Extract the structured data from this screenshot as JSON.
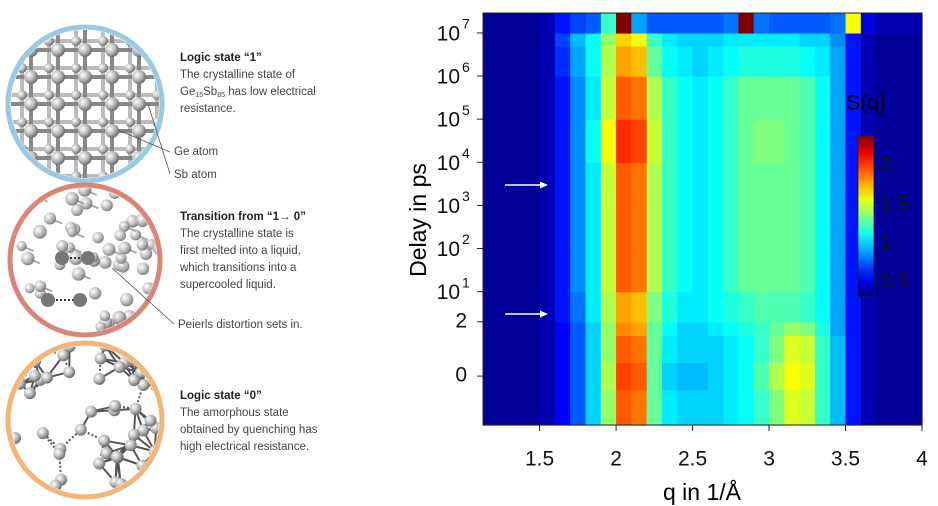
{
  "panels": [
    {
      "title": "Logic state “1”",
      "lines": [
        "The crystalline state of"
      ],
      "formula": [
        "Ge",
        "15",
        "Sb",
        "85"
      ],
      "formula_rest": " has low electrical",
      "after": [
        "resistance."
      ],
      "labels": [
        "Ge atom",
        "Sb atom"
      ]
    },
    {
      "title": "Transition from “1→ 0”",
      "lines": [
        "The crystalline state is",
        "first melted into a liquid,",
        "which transitions into a",
        "supercooled liquid."
      ],
      "labels": [
        "Peierls distortion sets in."
      ]
    },
    {
      "title": "Logic state “0”",
      "lines": [
        "The amorphous state",
        "obtained by quenching has",
        "high electrical resistance."
      ]
    }
  ],
  "chart_data": {
    "type": "heatmap",
    "xlabel": "q in 1/Å",
    "ylabel": "Delay in ps",
    "xlim": [
      1.13,
      4.0
    ],
    "xticks": [
      1.5,
      2,
      2.5,
      3,
      3.5,
      4
    ],
    "ylim": [
      -1.8,
      29000000
    ],
    "yscale": "symlog",
    "linthresh": 2,
    "yticks": [
      {
        "value": 10000000,
        "label": "10",
        "exponent": "7"
      },
      {
        "value": 1000000,
        "label": "10",
        "exponent": "6"
      },
      {
        "value": 100000,
        "label": "10",
        "exponent": "5"
      },
      {
        "value": 10000,
        "label": "10",
        "exponent": "4"
      },
      {
        "value": 1000,
        "label": "10",
        "exponent": "3"
      },
      {
        "value": 100,
        "label": "10",
        "exponent": "2"
      },
      {
        "value": 10,
        "label": "10",
        "exponent": "1"
      },
      2,
      0
    ],
    "x_edges": [
      1.13,
      1.3,
      1.4,
      1.5,
      1.6,
      1.7,
      1.8,
      1.9,
      2.0,
      2.1,
      2.2,
      2.3,
      2.4,
      2.5,
      2.6,
      2.7,
      2.8,
      2.9,
      3.0,
      3.1,
      3.2,
      3.3,
      3.4,
      3.5,
      3.6,
      3.7,
      3.8,
      3.9,
      4.0
    ],
    "y_edges": [
      -1.8,
      -0.5,
      0.5,
      1.5,
      2,
      10,
      100,
      1000,
      10000,
      100000,
      1000000,
      5000000,
      10000000,
      29000000
    ],
    "z": [
      [
        0.35,
        0.35,
        0.35,
        0.4,
        0.55,
        0.75,
        1.0,
        1.4,
        1.95,
        1.9,
        1.3,
        1.05,
        1.0,
        1.0,
        1.0,
        1.05,
        1.1,
        1.2,
        1.35,
        1.55,
        1.5,
        1.2,
        0.95,
        0.6,
        0.4,
        0.35,
        0.35,
        0.35
      ],
      [
        0.35,
        0.35,
        0.35,
        0.4,
        0.55,
        0.75,
        1.0,
        1.45,
        2.0,
        1.95,
        1.3,
        1.0,
        0.95,
        0.95,
        1.0,
        1.05,
        1.1,
        1.25,
        1.45,
        1.6,
        1.55,
        1.2,
        0.95,
        0.6,
        0.4,
        0.35,
        0.35,
        0.35
      ],
      [
        0.35,
        0.35,
        0.35,
        0.4,
        0.55,
        0.75,
        1.0,
        1.4,
        1.95,
        1.9,
        1.3,
        1.05,
        1.0,
        1.0,
        1.0,
        1.05,
        1.1,
        1.2,
        1.35,
        1.55,
        1.5,
        1.2,
        0.95,
        0.6,
        0.4,
        0.35,
        0.35,
        0.35
      ],
      [
        0.35,
        0.35,
        0.35,
        0.4,
        0.55,
        0.75,
        1.0,
        1.4,
        1.85,
        1.8,
        1.3,
        1.1,
        1.0,
        1.0,
        1.05,
        1.1,
        1.15,
        1.2,
        1.3,
        1.4,
        1.35,
        1.15,
        0.9,
        0.6,
        0.4,
        0.35,
        0.35,
        0.35
      ],
      [
        0.35,
        0.35,
        0.35,
        0.4,
        0.6,
        0.8,
        1.05,
        1.45,
        1.8,
        1.75,
        1.35,
        1.15,
        1.05,
        1.05,
        1.1,
        1.15,
        1.2,
        1.25,
        1.25,
        1.25,
        1.2,
        1.1,
        0.9,
        0.6,
        0.4,
        0.35,
        0.35,
        0.35
      ],
      [
        0.35,
        0.35,
        0.35,
        0.4,
        0.6,
        0.85,
        1.05,
        1.5,
        1.95,
        1.9,
        1.45,
        1.2,
        1.1,
        1.05,
        1.1,
        1.2,
        1.3,
        1.3,
        1.3,
        1.3,
        1.25,
        1.1,
        0.9,
        0.6,
        0.4,
        0.35,
        0.35,
        0.35
      ],
      [
        0.35,
        0.35,
        0.35,
        0.4,
        0.6,
        0.85,
        1.05,
        1.5,
        1.95,
        1.9,
        1.45,
        1.2,
        1.1,
        1.05,
        1.1,
        1.2,
        1.3,
        1.3,
        1.3,
        1.3,
        1.25,
        1.1,
        0.9,
        0.6,
        0.4,
        0.35,
        0.35,
        0.35
      ],
      [
        0.35,
        0.35,
        0.35,
        0.4,
        0.6,
        0.85,
        1.05,
        1.5,
        1.95,
        1.9,
        1.45,
        1.2,
        1.1,
        1.05,
        1.1,
        1.2,
        1.3,
        1.3,
        1.3,
        1.3,
        1.25,
        1.1,
        0.9,
        0.6,
        0.4,
        0.35,
        0.35,
        0.35
      ],
      [
        0.35,
        0.35,
        0.35,
        0.4,
        0.6,
        0.85,
        1.1,
        1.6,
        2.05,
        2.0,
        1.5,
        1.2,
        1.1,
        1.05,
        1.1,
        1.2,
        1.3,
        1.35,
        1.35,
        1.3,
        1.25,
        1.1,
        0.9,
        0.6,
        0.4,
        0.35,
        0.35,
        0.35
      ],
      [
        0.35,
        0.35,
        0.35,
        0.4,
        0.6,
        0.85,
        1.05,
        1.5,
        1.95,
        1.9,
        1.45,
        1.2,
        1.1,
        1.05,
        1.1,
        1.2,
        1.3,
        1.3,
        1.3,
        1.3,
        1.25,
        1.1,
        0.9,
        0.6,
        0.4,
        0.35,
        0.35,
        0.35
      ],
      [
        0.35,
        0.35,
        0.35,
        0.4,
        0.65,
        0.9,
        1.1,
        1.45,
        1.8,
        1.75,
        1.3,
        1.1,
        1.05,
        1.0,
        1.05,
        1.1,
        1.15,
        1.15,
        1.15,
        1.15,
        1.1,
        1.05,
        0.9,
        0.6,
        0.4,
        0.35,
        0.35,
        0.35
      ],
      [
        0.35,
        0.35,
        0.35,
        0.4,
        0.7,
        0.95,
        1.1,
        1.4,
        1.7,
        1.6,
        1.2,
        1.05,
        1.0,
        1.0,
        1.0,
        1.05,
        1.05,
        1.05,
        1.05,
        1.05,
        1.0,
        1.0,
        0.85,
        0.6,
        0.4,
        0.35,
        0.35,
        0.35
      ],
      [
        0.35,
        0.35,
        0.35,
        0.4,
        0.6,
        0.7,
        0.75,
        1.2,
        2.4,
        0.9,
        0.75,
        0.75,
        0.75,
        0.75,
        0.75,
        0.8,
        2.4,
        0.8,
        0.75,
        0.75,
        0.75,
        0.75,
        0.8,
        1.6,
        0.5,
        0.4,
        0.4,
        0.4
      ]
    ],
    "colormap": "jet",
    "colorbar": {
      "label": "S(q)",
      "lim": [
        0.3,
        2.4
      ],
      "ticks": [
        0.5,
        1,
        1.5,
        2
      ]
    }
  }
}
